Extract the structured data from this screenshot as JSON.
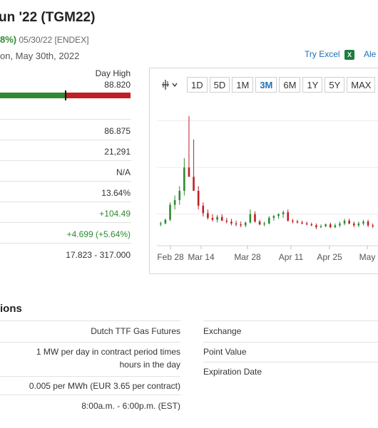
{
  "header": {
    "title": "un '22 (TGM22)",
    "change_pct": "8%)",
    "meta": "05/30/22 [ENDEX]",
    "as_of": "on, May 30th, 2022"
  },
  "links": {
    "try_excel": "Try Excel",
    "excel_icon": "X",
    "alerts": "Ale"
  },
  "day_range": {
    "high_label": "Day High",
    "high_value": "88.820",
    "marker_position_pct": 50,
    "green": "#2e8b32",
    "red": "#c01f24"
  },
  "stats": [
    {
      "value": "86.875",
      "tone": "neutral"
    },
    {
      "value": "21,291",
      "tone": "neutral"
    },
    {
      "value": "N/A",
      "tone": "neutral"
    },
    {
      "value": "13.64%",
      "tone": "neutral"
    },
    {
      "value": "+104.49",
      "tone": "positive"
    },
    {
      "value": "+4.699 (+5.64%)",
      "tone": "positive"
    },
    {
      "value": "17.823 - 317.000",
      "tone": "neutral"
    }
  ],
  "chart_toolbar": {
    "cursor_icon": "crosshair-icon",
    "ranges": [
      {
        "label": "1D",
        "active": false
      },
      {
        "label": "5D",
        "active": false
      },
      {
        "label": "1M",
        "active": false
      },
      {
        "label": "3M",
        "active": true
      },
      {
        "label": "6M",
        "active": false
      },
      {
        "label": "1Y",
        "active": false
      },
      {
        "label": "5Y",
        "active": false
      },
      {
        "label": "MAX",
        "active": false
      }
    ]
  },
  "chart_data": {
    "type": "candlestick",
    "x_ticks": [
      "Feb 28",
      "Mar 14",
      "Mar 28",
      "Apr 11",
      "Apr 25",
      "May"
    ],
    "candles": [
      {
        "o": 78,
        "h": 84,
        "l": 74,
        "c": 80
      },
      {
        "o": 80,
        "h": 90,
        "l": 78,
        "c": 88
      },
      {
        "o": 88,
        "h": 125,
        "l": 85,
        "c": 120
      },
      {
        "o": 120,
        "h": 140,
        "l": 110,
        "c": 130
      },
      {
        "o": 130,
        "h": 160,
        "l": 120,
        "c": 150
      },
      {
        "o": 150,
        "h": 220,
        "l": 140,
        "c": 200
      },
      {
        "o": 200,
        "h": 310,
        "l": 180,
        "c": 180
      },
      {
        "o": 180,
        "h": 260,
        "l": 150,
        "c": 150
      },
      {
        "o": 150,
        "h": 160,
        "l": 110,
        "c": 118
      },
      {
        "o": 118,
        "h": 125,
        "l": 95,
        "c": 102
      },
      {
        "o": 102,
        "h": 110,
        "l": 88,
        "c": 92
      },
      {
        "o": 92,
        "h": 100,
        "l": 84,
        "c": 88
      },
      {
        "o": 88,
        "h": 98,
        "l": 82,
        "c": 94
      },
      {
        "o": 94,
        "h": 100,
        "l": 85,
        "c": 86
      },
      {
        "o": 86,
        "h": 92,
        "l": 80,
        "c": 84
      },
      {
        "o": 84,
        "h": 90,
        "l": 76,
        "c": 80
      },
      {
        "o": 80,
        "h": 86,
        "l": 74,
        "c": 78
      },
      {
        "o": 78,
        "h": 84,
        "l": 72,
        "c": 76
      },
      {
        "o": 76,
        "h": 84,
        "l": 72,
        "c": 82
      },
      {
        "o": 82,
        "h": 110,
        "l": 80,
        "c": 100
      },
      {
        "o": 100,
        "h": 106,
        "l": 82,
        "c": 84
      },
      {
        "o": 84,
        "h": 88,
        "l": 76,
        "c": 78
      },
      {
        "o": 78,
        "h": 84,
        "l": 74,
        "c": 80
      },
      {
        "o": 80,
        "h": 96,
        "l": 78,
        "c": 92
      },
      {
        "o": 92,
        "h": 98,
        "l": 86,
        "c": 96
      },
      {
        "o": 96,
        "h": 102,
        "l": 90,
        "c": 100
      },
      {
        "o": 100,
        "h": 108,
        "l": 92,
        "c": 104
      },
      {
        "o": 104,
        "h": 110,
        "l": 84,
        "c": 86
      },
      {
        "o": 86,
        "h": 90,
        "l": 80,
        "c": 84
      },
      {
        "o": 84,
        "h": 88,
        "l": 80,
        "c": 82
      },
      {
        "o": 82,
        "h": 86,
        "l": 78,
        "c": 80
      },
      {
        "o": 80,
        "h": 84,
        "l": 76,
        "c": 78
      },
      {
        "o": 78,
        "h": 82,
        "l": 74,
        "c": 76
      },
      {
        "o": 76,
        "h": 80,
        "l": 68,
        "c": 72
      },
      {
        "o": 72,
        "h": 78,
        "l": 70,
        "c": 74
      },
      {
        "o": 74,
        "h": 80,
        "l": 72,
        "c": 78
      },
      {
        "o": 78,
        "h": 82,
        "l": 70,
        "c": 72
      },
      {
        "o": 72,
        "h": 80,
        "l": 70,
        "c": 76
      },
      {
        "o": 76,
        "h": 84,
        "l": 72,
        "c": 80
      },
      {
        "o": 80,
        "h": 90,
        "l": 76,
        "c": 86
      },
      {
        "o": 86,
        "h": 90,
        "l": 78,
        "c": 80
      },
      {
        "o": 80,
        "h": 84,
        "l": 72,
        "c": 76
      },
      {
        "o": 76,
        "h": 84,
        "l": 72,
        "c": 80
      },
      {
        "o": 80,
        "h": 88,
        "l": 76,
        "c": 84
      },
      {
        "o": 84,
        "h": 88,
        "l": 72,
        "c": 76
      },
      {
        "o": 76,
        "h": 80,
        "l": 70,
        "c": 74
      }
    ],
    "ylim": [
      40,
      330
    ],
    "gridlines": [
      100,
      200,
      300
    ],
    "up_color": "#2e8b32",
    "down_color": "#c01f24"
  },
  "specs": {
    "title": "ions",
    "rows": [
      {
        "value": "Dutch TTF Gas Futures",
        "label": "Exchange"
      },
      {
        "value_lines": [
          "1 MW per day in contract period times",
          "hours in the day"
        ],
        "label": "Point Value",
        "label2": "Expiration Date"
      },
      {
        "value": "0.005 per MWh (EUR 3.65 per contract)",
        "label": ""
      },
      {
        "value": "8:00a.m. - 6:00p.m. (EST)",
        "label": ""
      }
    ]
  }
}
